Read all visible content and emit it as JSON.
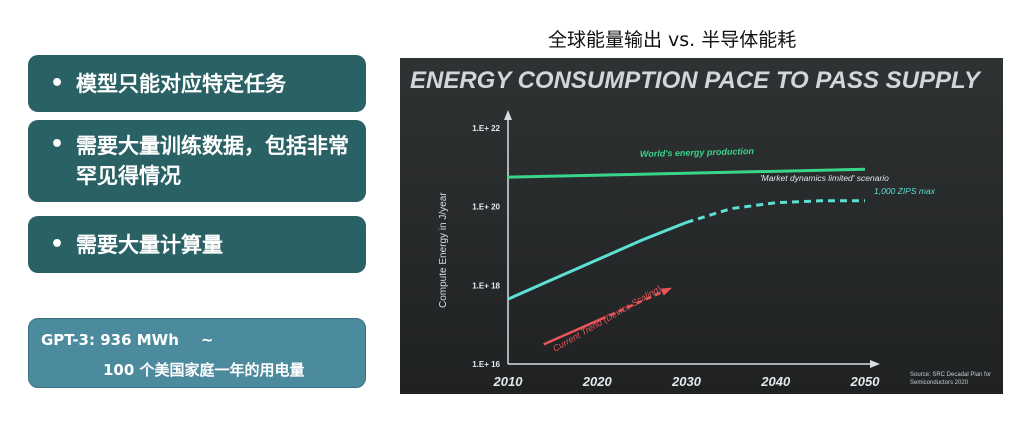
{
  "bullets": [
    "模型只能对应特定任务",
    "需要大量训练数据，包括非常罕见得情况",
    "需要大量计算量"
  ],
  "bullet_marker": "•",
  "note": {
    "line1": "GPT-3: 936 MWh",
    "tilde": "~",
    "line2": "100 个美国家庭一年的用电量"
  },
  "right_title": "全球能量输出 vs. 半导体能耗",
  "colors": {
    "teal_box": "#2a6165",
    "note_box": "#4c8a9e",
    "chart_bg": "#262829",
    "green_line": "#38d68a",
    "cyan_line": "#5de0d4",
    "red_line": "#e8555a"
  },
  "chart_data": {
    "type": "line",
    "title": "ENERGY CONSUMPTION PACE TO PASS SUPPLY",
    "ylabel": "Compute Energy in J/year",
    "xlabel": "",
    "x_ticks": [
      "2010",
      "2020",
      "2030",
      "2040",
      "2050"
    ],
    "y_ticks": [
      "1.E+ 16",
      "1.E+ 18",
      "1.E+ 20",
      "1.E+ 22"
    ],
    "y_scale": "log",
    "xlim": [
      2010,
      2050
    ],
    "ylim_exponent": [
      16,
      22
    ],
    "series": [
      {
        "name": "World's energy production",
        "style": "solid",
        "color": "#38d68a",
        "x": [
          2010,
          2050
        ],
        "y_exponent": [
          20.75,
          20.95
        ]
      },
      {
        "name": "'Market dynamics limited' scenario",
        "style": "solid-then-dashed",
        "color": "#5de0d4",
        "x": [
          2010,
          2015,
          2020,
          2025,
          2030,
          2035,
          2040,
          2045,
          2050
        ],
        "y_exponent": [
          17.65,
          18.15,
          18.65,
          19.15,
          19.6,
          19.95,
          20.1,
          20.15,
          20.15
        ]
      },
      {
        "name": "Current Trend (Device Scaling)",
        "style": "solid-then-dashed-arrow",
        "color": "#e8555a",
        "x": [
          2014,
          2028
        ],
        "y_exponent": [
          16.5,
          17.9
        ]
      }
    ],
    "annotations": {
      "world": "World's energy production",
      "market": "'Market dynamics limited' scenario",
      "zips": "1,000 ZIPS max",
      "current": "Current Trend (Device Scaling)",
      "source": "Source: SRC Decadal Plan for Semiconductors 2020"
    }
  }
}
